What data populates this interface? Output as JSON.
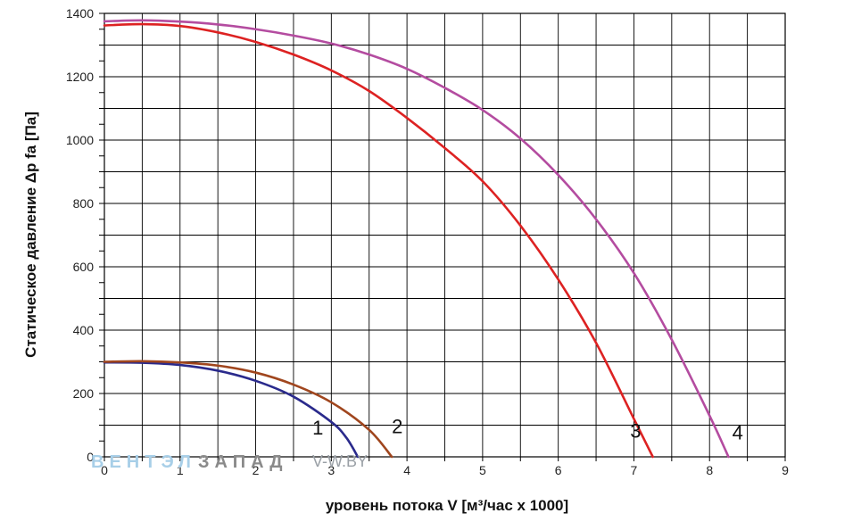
{
  "chart_data": {
    "type": "line",
    "title": "",
    "xlabel": "уровень потока  V [м³/час х 1000]",
    "ylabel": "Статическое давление  Δp fa [Па]",
    "xlim": [
      0,
      9
    ],
    "ylim": [
      0,
      1400
    ],
    "x_ticks": [
      0,
      1,
      2,
      3,
      4,
      5,
      6,
      7,
      8,
      9
    ],
    "y_ticks": [
      0,
      200,
      400,
      600,
      800,
      1000,
      1200,
      1400
    ],
    "x_tick_labels": [
      "0",
      "1",
      "2",
      "3",
      "4",
      "5",
      "6",
      "7",
      "8",
      "9"
    ],
    "y_tick_labels": [
      "0",
      "200",
      "400",
      "600",
      "800",
      "1000",
      "1200",
      "1400"
    ],
    "grid": true,
    "series": [
      {
        "name": "1",
        "color": "#2a2a8c",
        "label_at": [
          2.75,
          70
        ],
        "x": [
          0,
          0.5,
          1.0,
          1.5,
          2.0,
          2.5,
          3.0,
          3.2,
          3.35
        ],
        "y": [
          298,
          297,
          290,
          272,
          240,
          190,
          110,
          60,
          0
        ]
      },
      {
        "name": "2",
        "color": "#a0461e",
        "label_at": [
          3.8,
          75
        ],
        "x": [
          0,
          0.5,
          1.0,
          1.5,
          2.0,
          2.5,
          3.0,
          3.5,
          3.8
        ],
        "y": [
          300,
          302,
          298,
          288,
          266,
          228,
          172,
          85,
          0
        ]
      },
      {
        "name": "3",
        "color": "#dd2222",
        "label_at": [
          6.95,
          60
        ],
        "x": [
          0,
          0.5,
          1.0,
          1.5,
          2.0,
          2.5,
          3.0,
          3.5,
          4.0,
          4.5,
          5.0,
          5.5,
          6.0,
          6.5,
          7.0,
          7.25
        ],
        "y": [
          1362,
          1366,
          1360,
          1340,
          1310,
          1270,
          1220,
          1155,
          1070,
          975,
          870,
          730,
          560,
          360,
          120,
          0
        ]
      },
      {
        "name": "4",
        "color": "#b44ca0",
        "label_at": [
          8.3,
          55
        ],
        "x": [
          0,
          0.5,
          1.0,
          1.5,
          2.0,
          2.5,
          3.0,
          3.5,
          4.0,
          4.5,
          5.0,
          5.5,
          6.0,
          6.5,
          7.0,
          7.5,
          8.0,
          8.25
        ],
        "y": [
          1375,
          1378,
          1374,
          1365,
          1350,
          1330,
          1305,
          1270,
          1225,
          1165,
          1095,
          1005,
          890,
          750,
          580,
          370,
          130,
          0
        ]
      }
    ]
  },
  "watermark": {
    "part1": "ВЕНТЭЛ",
    "part2": "ЗАПАД",
    "part3": "V-W.BY",
    "color1": "#a8cfe8",
    "color2": "#8a8a8a"
  }
}
